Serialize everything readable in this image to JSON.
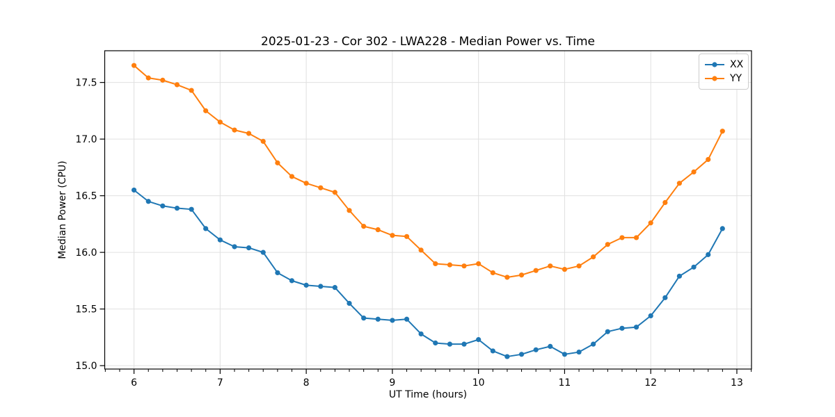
{
  "chart_data": {
    "type": "line",
    "title": "2025-01-23 - Cor 302 - LWA228 - Median Power vs. Time",
    "xlabel": "UT Time (hours)",
    "ylabel": "Median Power (CPU)",
    "xlim": [
      5.66,
      13.17
    ],
    "ylim": [
      14.97,
      17.78
    ],
    "x_ticks": [
      6,
      7,
      8,
      9,
      10,
      11,
      12,
      13
    ],
    "x_tick_labels": [
      "6",
      "7",
      "8",
      "9",
      "10",
      "11",
      "12",
      "13"
    ],
    "y_ticks": [
      15.0,
      15.5,
      16.0,
      16.5,
      17.0,
      17.5
    ],
    "y_tick_labels": [
      "15.0",
      "15.5",
      "16.0",
      "16.5",
      "17.0",
      "17.5"
    ],
    "x_minor_tick_step": 0.16667,
    "grid": true,
    "legend_position": "upper right",
    "x": [
      6.0,
      6.167,
      6.333,
      6.5,
      6.667,
      6.833,
      7.0,
      7.167,
      7.333,
      7.5,
      7.667,
      7.833,
      8.0,
      8.167,
      8.333,
      8.5,
      8.667,
      8.833,
      9.0,
      9.167,
      9.333,
      9.5,
      9.667,
      9.833,
      10.0,
      10.167,
      10.333,
      10.5,
      10.667,
      10.833,
      11.0,
      11.167,
      11.333,
      11.5,
      11.667,
      11.833,
      12.0,
      12.167,
      12.333,
      12.5,
      12.667,
      12.833
    ],
    "series": [
      {
        "name": "XX",
        "color": "#1f77b4",
        "values": [
          16.55,
          16.45,
          16.41,
          16.39,
          16.38,
          16.21,
          16.11,
          16.05,
          16.04,
          16.0,
          15.82,
          15.75,
          15.71,
          15.7,
          15.69,
          15.55,
          15.42,
          15.41,
          15.4,
          15.41,
          15.28,
          15.2,
          15.19,
          15.19,
          15.23,
          15.13,
          15.08,
          15.1,
          15.14,
          15.17,
          15.1,
          15.12,
          15.19,
          15.3,
          15.33,
          15.34,
          15.44,
          15.6,
          15.79,
          15.87,
          15.98,
          16.21
        ]
      },
      {
        "name": "YY",
        "color": "#ff7f0e",
        "values": [
          17.65,
          17.54,
          17.52,
          17.48,
          17.43,
          17.25,
          17.15,
          17.08,
          17.05,
          16.98,
          16.79,
          16.67,
          16.61,
          16.57,
          16.53,
          16.37,
          16.23,
          16.2,
          16.15,
          16.14,
          16.02,
          15.9,
          15.89,
          15.88,
          15.9,
          15.82,
          15.78,
          15.8,
          15.84,
          15.88,
          15.85,
          15.88,
          15.96,
          16.07,
          16.13,
          16.13,
          16.26,
          16.44,
          16.61,
          16.71,
          16.82,
          17.07
        ]
      }
    ],
    "colors": {
      "grid": "#e0e0e0",
      "spine": "#000000",
      "background": "#ffffff"
    }
  }
}
